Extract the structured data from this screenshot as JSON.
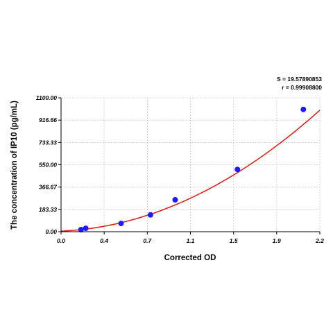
{
  "chart_data": {
    "type": "scatter",
    "xlabel": "Corrected OD",
    "ylabel": "The concentration of IP10 (pg/mL)",
    "xlim": [
      0.0,
      2.2
    ],
    "ylim": [
      0.0,
      1100.0
    ],
    "x_ticks": [
      "0.0",
      "0.4",
      "0.7",
      "1.1",
      "1.5",
      "1.9",
      "2.2"
    ],
    "y_ticks": [
      "0.00",
      "183.33",
      "366.67",
      "550.00",
      "733.33",
      "916.66",
      "1100.00"
    ],
    "grid": true,
    "stats": {
      "s": "S = 19.57890853",
      "r": "r = 0.99908800"
    },
    "points": [
      {
        "x": 0.17,
        "y": 17
      },
      {
        "x": 0.21,
        "y": 28
      },
      {
        "x": 0.51,
        "y": 68
      },
      {
        "x": 0.76,
        "y": 138
      },
      {
        "x": 0.97,
        "y": 262
      },
      {
        "x": 1.5,
        "y": 512
      },
      {
        "x": 2.06,
        "y": 1005
      }
    ],
    "fit_curve": {
      "type": "polynomial",
      "coefficients": [
        5,
        40,
        187
      ]
    },
    "colors": {
      "points": "#1c1cff",
      "curve": "#e0201c",
      "grid": "#c8c8c8"
    }
  }
}
